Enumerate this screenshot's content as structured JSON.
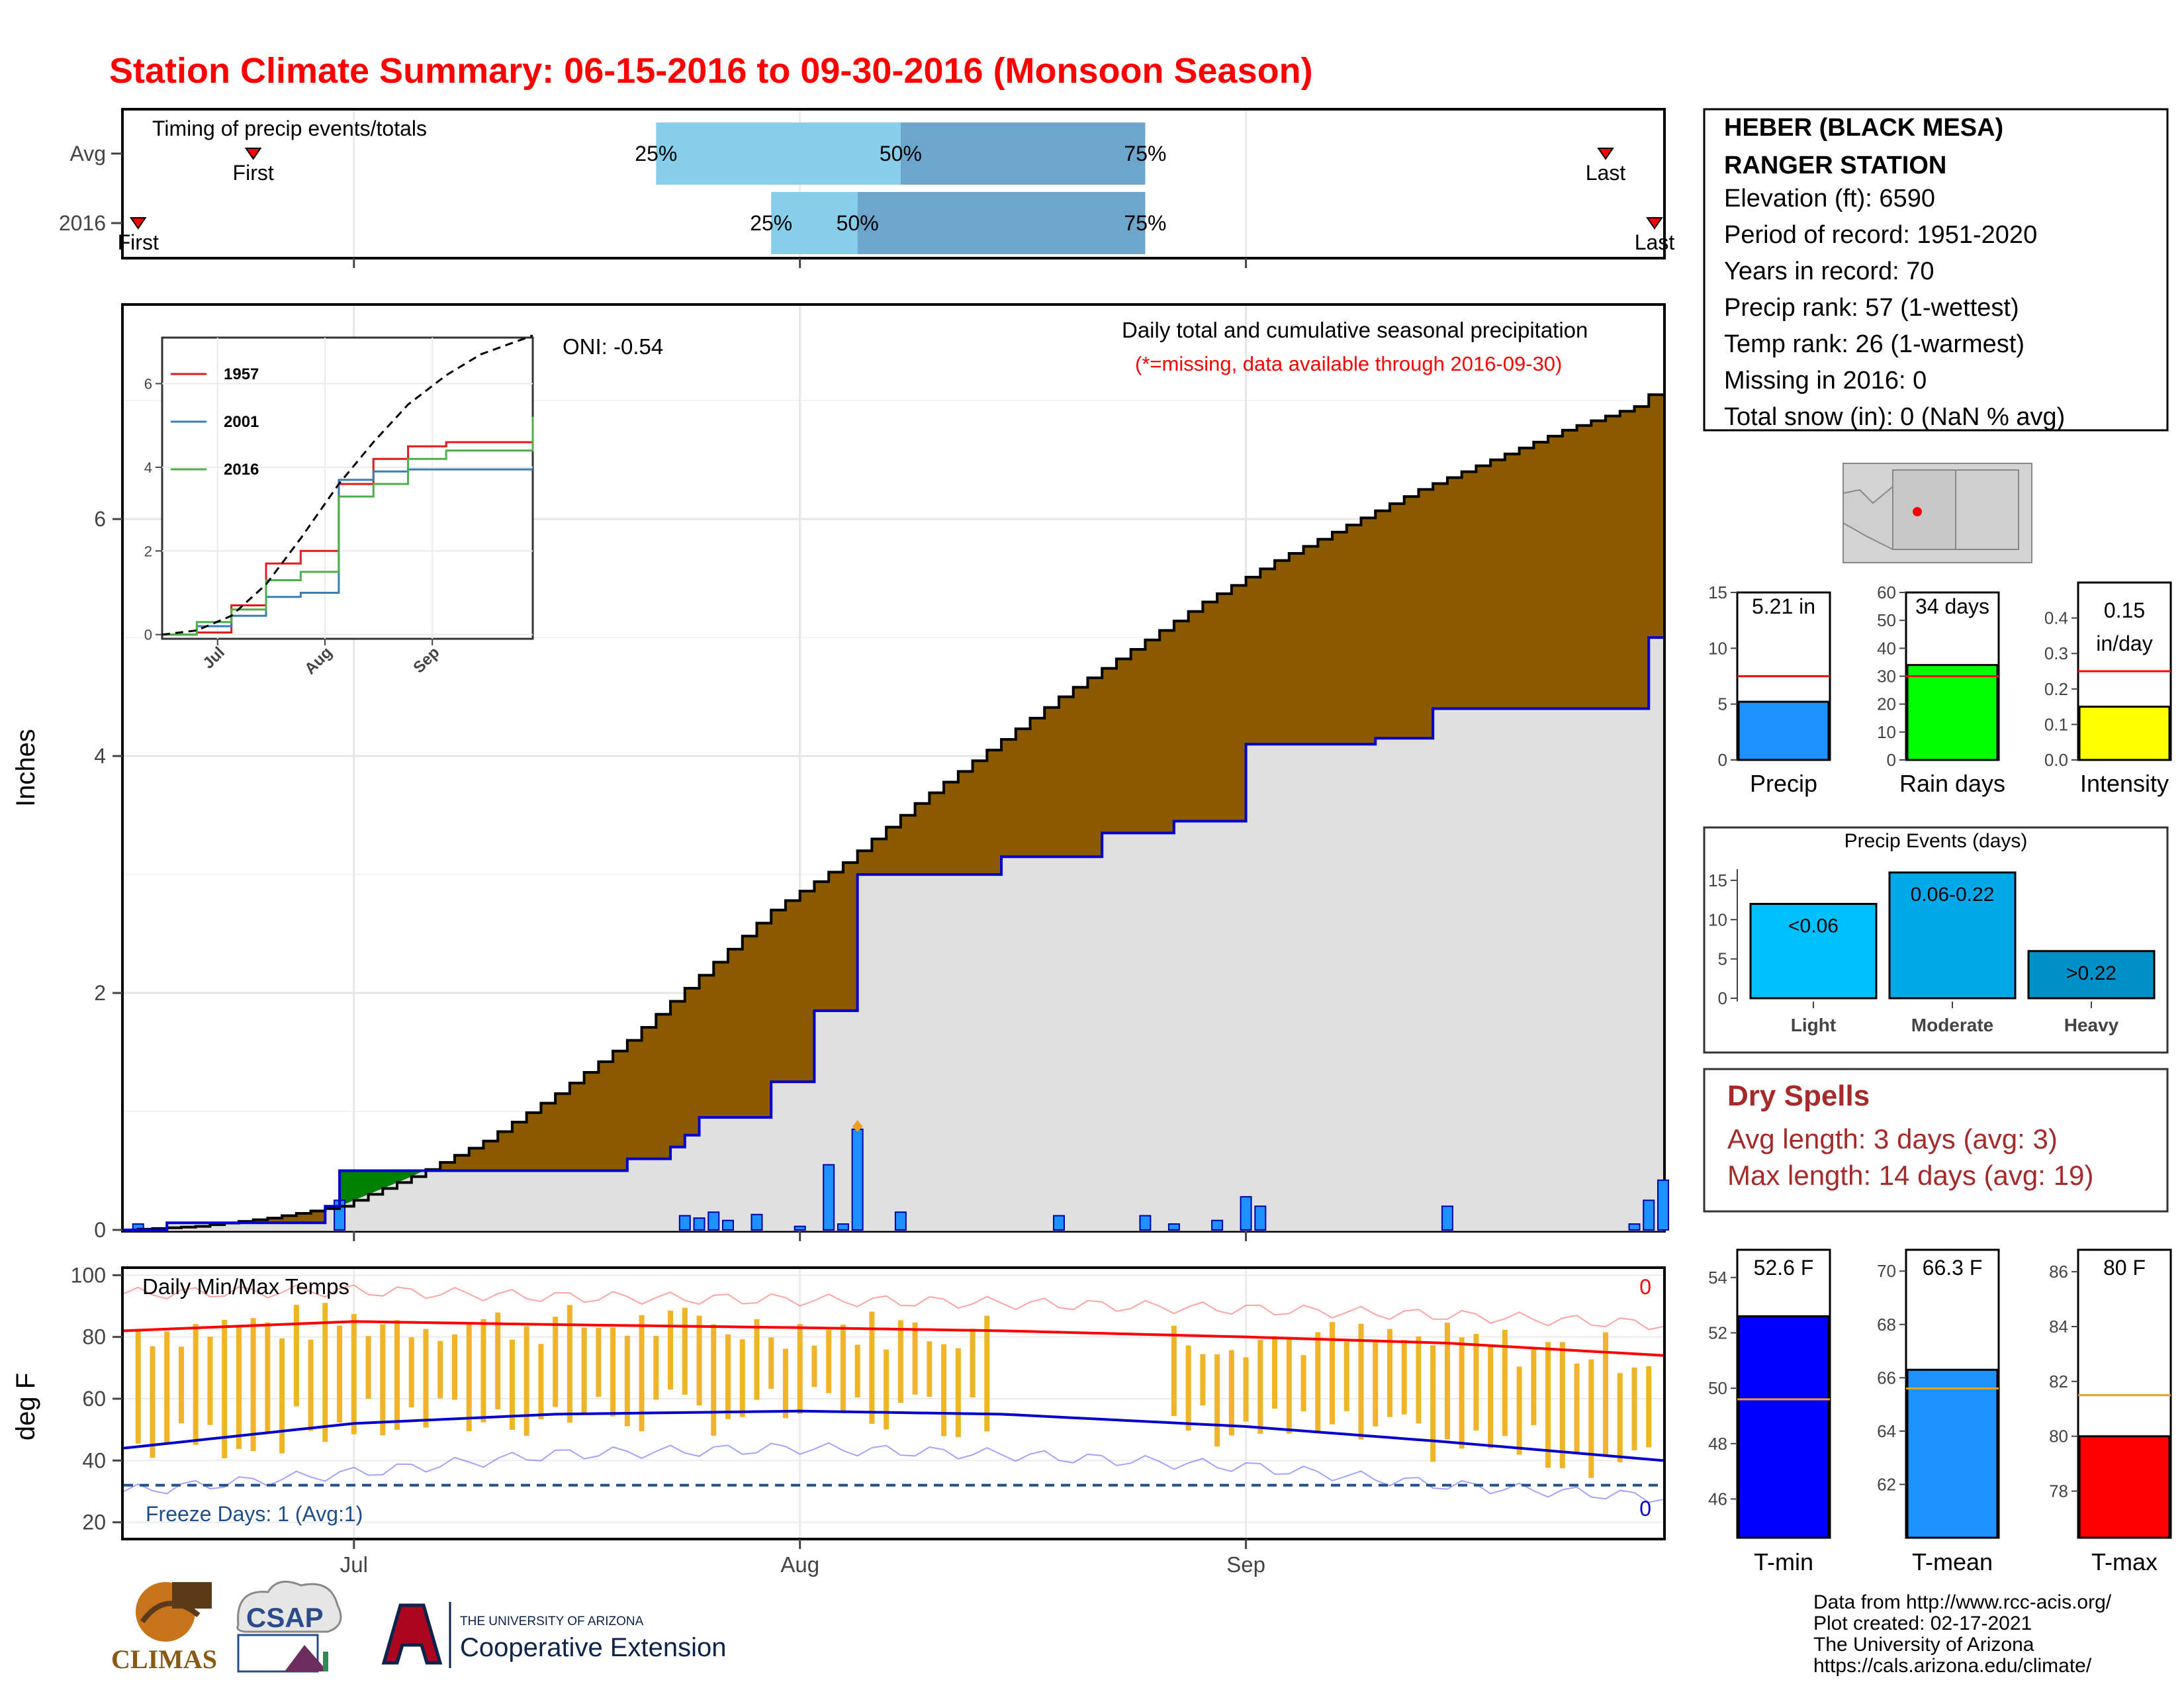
{
  "title": "Station Climate Summary: 06-15-2016 to 09-30-2016 (Monsoon Season)",
  "timing": {
    "heading": "Timing of precip events/totals",
    "row_labels": [
      "Avg",
      "2016"
    ],
    "first_label": "First",
    "last_label": "Last",
    "avg": {
      "first": "2016-06-24",
      "last": "2016-09-26",
      "p25": "2016-07-22",
      "p50": "2016-08-08",
      "p75": "2016-08-25"
    },
    "y2016": {
      "first": "2016-06-16",
      "last": "2016-09-30",
      "p25": "2016-07-30",
      "p50": "2016-08-05",
      "p75": "2016-08-25"
    },
    "pct_labels": [
      "25%",
      "50%",
      "75%"
    ]
  },
  "precip_main": {
    "heading": "Daily total and cumulative seasonal precipitation",
    "note": "(*=missing, data available through 2016-09-30)",
    "oni": "ONI: -0.54",
    "ylabel": "Inches",
    "yticks": [
      "0",
      "2",
      "4",
      "6"
    ],
    "xticks": [
      "Jul",
      "Aug",
      "Sep"
    ],
    "ylim": [
      0,
      7.8
    ]
  },
  "inset": {
    "legend": [
      "1957",
      "2001",
      "2016"
    ],
    "colors": [
      "#e31a1c",
      "#377eb8",
      "#4daf4a"
    ],
    "yticks": [
      "0",
      "2",
      "4",
      "6"
    ],
    "xticks": [
      "Jul",
      "Aug",
      "Sep"
    ]
  },
  "temps": {
    "heading": "Daily Min/Max Temps",
    "ylabel": "deg F",
    "yticks": [
      "20",
      "40",
      "60",
      "80",
      "100"
    ],
    "freeze_label": "Freeze Days: 1 (Avg:1)",
    "count_top": "0",
    "count_bottom": "0"
  },
  "station": {
    "name1": "HEBER (BLACK MESA)",
    "name2": "RANGER STATION",
    "lines": [
      "Elevation (ft): 6590",
      "Period of record: 1951-2020",
      "Years in record: 70",
      "Precip rank: 57 (1-wettest)",
      "Temp rank: 26 (1-warmest)",
      "Missing in 2016: 0",
      "Total snow (in): 0 (NaN % avg)"
    ]
  },
  "summary_bars": {
    "precip": {
      "label": "Precip",
      "value_text": "5.21 in",
      "yticks": [
        "0",
        "5",
        "10",
        "15"
      ]
    },
    "raindays": {
      "label": "Rain days",
      "value_text": "34 days",
      "yticks": [
        "0",
        "10",
        "20",
        "30",
        "40",
        "50",
        "60"
      ]
    },
    "intensity": {
      "label": "Intensity",
      "value_text_1": "0.15",
      "value_text_2": "in/day",
      "yticks": [
        "0.0",
        "0.1",
        "0.2",
        "0.3",
        "0.4"
      ]
    }
  },
  "events": {
    "title": "Precip Events (days)",
    "categories": [
      "Light",
      "Moderate",
      "Heavy"
    ],
    "bar_labels": [
      "<0.06",
      "0.06-0.22",
      ">0.22"
    ],
    "yticks": [
      "0",
      "5",
      "10",
      "15"
    ]
  },
  "dry_spells": {
    "title": "Dry Spells",
    "avg_line": "Avg length: 3 days (avg: 3)",
    "max_line": "Max length: 14 days (avg: 19)"
  },
  "temp_bars": {
    "tmin": {
      "label": "T-min",
      "value_text": "52.6 F",
      "yticks": [
        "46",
        "48",
        "50",
        "52",
        "54"
      ]
    },
    "tmean": {
      "label": "T-mean",
      "value_text": "66.3 F",
      "yticks": [
        "62",
        "64",
        "66",
        "68",
        "70"
      ]
    },
    "tmax": {
      "label": "T-max",
      "value_text": "80 F",
      "yticks": [
        "78",
        "80",
        "82",
        "84",
        "86"
      ]
    }
  },
  "footer": {
    "lines": [
      "Data from http://www.rcc-acis.org/",
      "Plot created: 02-17-2021",
      "The University of Arizona",
      "https://cals.arizona.edu/climate/"
    ],
    "logo_climas": "CLIMAS",
    "logo_csap": "CSAP",
    "ua_small": "THE UNIVERSITY OF ARIZONA",
    "ua_big": "Cooperative Extension"
  },
  "colors": {
    "title": "#ff0000",
    "cum_avg_fill": "#8b5a00",
    "cum_2016_fill": "#e0e0e0",
    "cum_2016_line": "#0000cc",
    "daily_bar": "#1e90ff",
    "deficit_green": "#008000",
    "tmax_avg": "#ff0000",
    "tmin_avg": "#0000cc",
    "temp_bar": "#f0b429",
    "dry_spells": "#a52a2a"
  },
  "chart_data": [
    {
      "type": "area",
      "title": "Daily total and cumulative seasonal precipitation",
      "ylabel": "Inches",
      "ylim": [
        0,
        7.8
      ],
      "x_range": [
        "2016-06-15",
        "2016-09-30"
      ],
      "series": [
        {
          "name": "",
          "x": [
            "2016-06-15",
            "2016-06-20",
            "2016-06-25",
            "2016-06-30",
            "2016-07-05",
            "2016-07-10",
            "2016-07-15",
            "2016-07-20",
            "2016-07-25",
            "2016-07-30",
            "2016-08-04",
            "2016-08-09",
            "2016-08-14",
            "2016-08-19",
            "2016-08-24",
            "2016-08-29",
            "2016-09-03",
            "2016-09-08",
            "2016-09-13",
            "2016-09-18",
            "2016-09-23",
            "2016-09-28",
            "2016-09-30"
          ],
          "values": [
            0.0,
            0.03,
            0.1,
            0.2,
            0.45,
            0.75,
            1.15,
            1.6,
            2.15,
            2.7,
            3.1,
            3.6,
            4.05,
            4.5,
            4.9,
            5.3,
            5.65,
            5.95,
            6.25,
            6.5,
            6.75,
            6.95,
            7.15
          ]
        },
        {
          "name": "",
          "x": [
            "2016-06-15",
            "2016-06-18",
            "2016-06-29",
            "2016-06-30",
            "2016-07-10",
            "2016-07-20",
            "2016-07-23",
            "2016-07-24",
            "2016-07-25",
            "2016-07-30",
            "2016-08-02",
            "2016-08-05",
            "2016-08-15",
            "2016-08-22",
            "2016-08-27",
            "2016-09-01",
            "2016-09-10",
            "2016-09-14",
            "2016-09-25",
            "2016-09-29",
            "2016-09-30"
          ],
          "values": [
            0.0,
            0.06,
            0.2,
            0.5,
            0.5,
            0.6,
            0.7,
            0.8,
            0.95,
            1.25,
            1.85,
            3.0,
            3.15,
            3.35,
            3.45,
            4.1,
            4.15,
            4.4,
            4.4,
            5.0,
            5.21
          ]
        },
        {
          "name": "",
          "type": "bar",
          "x": [
            "2016-06-16",
            "2016-06-30",
            "2016-07-24",
            "2016-07-25",
            "2016-07-26",
            "2016-07-27",
            "2016-07-29",
            "2016-08-01",
            "2016-08-03",
            "2016-08-04",
            "2016-08-05",
            "2016-08-08",
            "2016-08-19",
            "2016-08-25",
            "2016-08-27",
            "2016-08-30",
            "2016-09-01",
            "2016-09-02",
            "2016-09-15",
            "2016-09-28",
            "2016-09-29",
            "2016-09-30"
          ],
          "values": [
            0.05,
            0.25,
            0.12,
            0.1,
            0.15,
            0.08,
            0.13,
            0.03,
            0.55,
            0.05,
            0.85,
            0.15,
            0.12,
            0.12,
            0.05,
            0.08,
            0.28,
            0.2,
            0.2,
            0.05,
            0.25,
            0.42
          ]
        }
      ]
    },
    {
      "type": "line",
      "x_range": [
        "2016-06-15",
        "2016-09-30"
      ],
      "xticks": [
        "Jul",
        "Aug",
        "Sep"
      ],
      "yticks": [
        "0",
        "2",
        "4",
        "6"
      ],
      "series": [
        {
          "name": "1957",
          "x": [
            "2016-06-15",
            "2016-06-25",
            "2016-07-05",
            "2016-07-15",
            "2016-07-25",
            "2016-08-05",
            "2016-08-15",
            "2016-08-25",
            "2016-09-05",
            "2016-09-15",
            "2016-09-25",
            "2016-09-30"
          ],
          "values": [
            0.0,
            0.05,
            0.7,
            1.7,
            2.0,
            3.6,
            4.2,
            4.5,
            4.6,
            4.6,
            4.6,
            4.6
          ]
        },
        {
          "name": "2001",
          "x": [
            "2016-06-15",
            "2016-06-25",
            "2016-07-05",
            "2016-07-15",
            "2016-07-25",
            "2016-08-05",
            "2016-08-15",
            "2016-08-25",
            "2016-09-05",
            "2016-09-15",
            "2016-09-25",
            "2016-09-30"
          ],
          "values": [
            0.0,
            0.2,
            0.45,
            0.9,
            1.0,
            3.7,
            3.9,
            3.95,
            3.95,
            3.95,
            3.95,
            3.95
          ]
        },
        {
          "name": "2016",
          "x": [
            "2016-06-15",
            "2016-06-25",
            "2016-07-05",
            "2016-07-15",
            "2016-07-25",
            "2016-08-05",
            "2016-08-15",
            "2016-08-25",
            "2016-09-05",
            "2016-09-15",
            "2016-09-25",
            "2016-09-30"
          ],
          "values": [
            0.0,
            0.3,
            0.6,
            1.3,
            1.5,
            3.3,
            3.6,
            4.2,
            4.4,
            4.4,
            4.4,
            5.21
          ]
        },
        {
          "name": "",
          "x": [
            "2016-06-15",
            "2016-06-25",
            "2016-07-05",
            "2016-07-15",
            "2016-07-25",
            "2016-08-05",
            "2016-08-15",
            "2016-08-25",
            "2016-09-05",
            "2016-09-15",
            "2016-09-25",
            "2016-09-30"
          ],
          "values": [
            0.0,
            0.1,
            0.45,
            1.2,
            2.3,
            3.6,
            4.6,
            5.5,
            6.2,
            6.7,
            7.0,
            7.15
          ]
        }
      ]
    },
    {
      "type": "line",
      "title": "Daily Min/Max Temps",
      "ylabel": "deg F",
      "ylim": [
        15,
        102
      ],
      "x_range": [
        "2016-06-15",
        "2016-09-30"
      ],
      "series": [
        {
          "name": "",
          "x": [
            "2016-06-15",
            "2016-07-01",
            "2016-07-15",
            "2016-08-01",
            "2016-08-15",
            "2016-09-01",
            "2016-09-15",
            "2016-09-30"
          ],
          "values": [
            82,
            85,
            84,
            83,
            82,
            80,
            78,
            74
          ]
        },
        {
          "name": "",
          "x": [
            "2016-06-15",
            "2016-07-01",
            "2016-07-15",
            "2016-08-01",
            "2016-08-15",
            "2016-09-01",
            "2016-09-15",
            "2016-09-30"
          ],
          "values": [
            44,
            52,
            55,
            56,
            55,
            51,
            46,
            40
          ]
        },
        {
          "name": "",
          "x": [
            "2016-06-15",
            "2016-07-01",
            "2016-07-15",
            "2016-08-01",
            "2016-08-15",
            "2016-09-01",
            "2016-09-15",
            "2016-09-30"
          ],
          "values": [
            94,
            95,
            93,
            92,
            91,
            89,
            87,
            84
          ]
        },
        {
          "name": "",
          "x": [
            "2016-06-15",
            "2016-07-01",
            "2016-07-15",
            "2016-08-01",
            "2016-08-15",
            "2016-09-01",
            "2016-09-15",
            "2016-09-30"
          ],
          "values": [
            30,
            36,
            42,
            44,
            42,
            38,
            32,
            28
          ]
        }
      ],
      "freeze_threshold": 32
    },
    {
      "type": "bar",
      "categories": [
        "Precip",
        "Rain days",
        "Intensity"
      ],
      "values": [
        5.21,
        34,
        0.15
      ],
      "averages": [
        7.5,
        30,
        0.25
      ]
    },
    {
      "type": "bar",
      "title": "Precip Events (days)",
      "categories": [
        "Light",
        "Moderate",
        "Heavy"
      ],
      "values": [
        12,
        16,
        6
      ],
      "ylim": [
        0,
        16
      ]
    },
    {
      "type": "bar",
      "categories": [
        "T-min",
        "T-mean",
        "T-max"
      ],
      "values": [
        52.6,
        66.3,
        80
      ],
      "averages": [
        49.6,
        65.6,
        81.5
      ]
    }
  ]
}
